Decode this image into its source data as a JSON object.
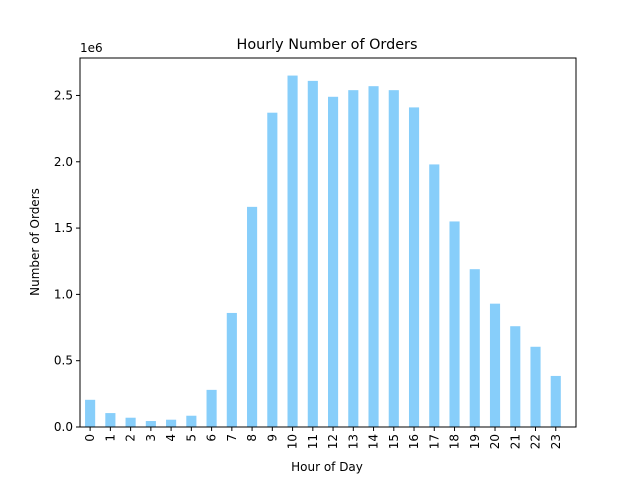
{
  "chart_data": {
    "type": "bar",
    "title": "Hourly Number of Orders",
    "xlabel": "Hour of Day",
    "ylabel": "Number of Orders",
    "y_scale_label": "1e6",
    "categories": [
      "0",
      "1",
      "2",
      "3",
      "4",
      "5",
      "6",
      "7",
      "8",
      "9",
      "10",
      "11",
      "12",
      "13",
      "14",
      "15",
      "16",
      "17",
      "18",
      "19",
      "20",
      "21",
      "22",
      "23"
    ],
    "values": [
      205000,
      105000,
      70000,
      45000,
      55000,
      85000,
      280000,
      860000,
      1660000,
      2370000,
      2650000,
      2610000,
      2490000,
      2540000,
      2570000,
      2540000,
      2410000,
      1980000,
      1550000,
      1190000,
      930000,
      760000,
      605000,
      385000
    ],
    "y_ticks": [
      0,
      500000,
      1000000,
      1500000,
      2000000,
      2500000
    ],
    "y_tick_labels": [
      "0.0",
      "0.5",
      "1.0",
      "1.5",
      "2.0",
      "2.5"
    ],
    "ylim": [
      0,
      2782500
    ],
    "bar_color": "#87cefa",
    "grid": false,
    "legend": "none"
  }
}
